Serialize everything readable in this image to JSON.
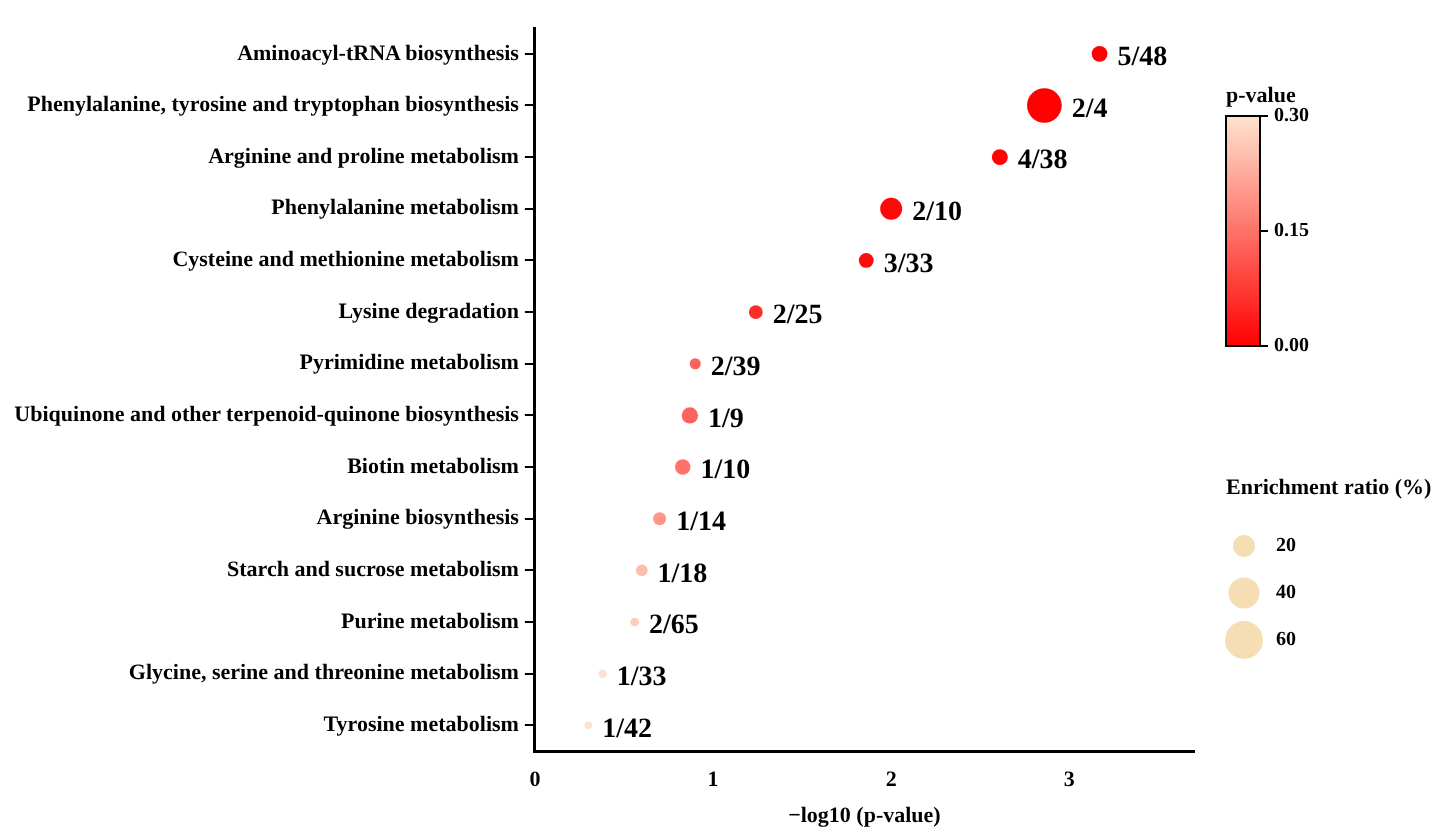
{
  "chart_data": {
    "type": "bubble",
    "xlabel": "−log10 (p-value)",
    "clabel": "p-value",
    "legend_title": "Enrichment ratio (%)",
    "categories": [
      "Aminoacyl-tRNA biosynthesis",
      "Phenylalanine, tyrosine and tryptophan biosynthesis",
      "Arginine and proline metabolism",
      "Phenylalanine metabolism",
      "Cysteine and methionine metabolism",
      "Lysine degradation",
      "Pyrimidine metabolism",
      "Ubiquinone and other terpenoid-quinone biosynthesis",
      "Biotin metabolism",
      "Arginine biosynthesis",
      "Starch and sucrose metabolism",
      "Purine metabolism",
      "Glycine, serine and threonine metabolism",
      "Tyrosine metabolism"
    ],
    "values": [
      3.17,
      2.86,
      2.61,
      2.0,
      1.86,
      1.24,
      0.9,
      0.87,
      0.83,
      0.7,
      0.6,
      0.56,
      0.38,
      0.3
    ],
    "sizes": [
      10.4,
      50,
      10.5,
      20,
      9.1,
      8,
      5.1,
      11.1,
      10,
      7.1,
      5.6,
      3.1,
      3.0,
      2.4
    ],
    "cvalues": [
      0.001,
      0.001,
      0.002,
      0.01,
      0.014,
      0.058,
      0.13,
      0.13,
      0.15,
      0.2,
      0.25,
      0.27,
      0.3,
      0.3
    ],
    "orientation": "horizontal",
    "annotations": [
      {
        "text": "5/48",
        "x": 3.17,
        "y": "Aminoacyl-tRNA biosynthesis"
      },
      {
        "text": "2/4",
        "x": 2.86,
        "y": "Phenylalanine, tyrosine and tryptophan biosynthesis"
      },
      {
        "text": "4/38",
        "x": 2.61,
        "y": "Arginine and proline metabolism"
      },
      {
        "text": "2/10",
        "x": 2.0,
        "y": "Phenylalanine metabolism"
      },
      {
        "text": "3/33",
        "x": 1.86,
        "y": "Cysteine and methionine metabolism"
      },
      {
        "text": "2/25",
        "x": 1.24,
        "y": "Lysine degradation"
      },
      {
        "text": "2/39",
        "x": 0.9,
        "y": "Pyrimidine metabolism"
      },
      {
        "text": "1/9",
        "x": 0.87,
        "y": "Ubiquinone and other terpenoid-quinone biosynthesis"
      },
      {
        "text": "1/10",
        "x": 0.83,
        "y": "Biotin metabolism"
      },
      {
        "text": "1/14",
        "x": 0.7,
        "y": "Arginine biosynthesis"
      },
      {
        "text": "1/18",
        "x": 0.6,
        "y": "Starch and sucrose metabolism"
      },
      {
        "text": "2/65",
        "x": 0.56,
        "y": "Purine metabolism"
      },
      {
        "text": "1/33",
        "x": 0.38,
        "y": "Glycine, serine and threonine metabolism"
      },
      {
        "text": "1/42",
        "x": 0.3,
        "y": "Tyrosine metabolism"
      }
    ],
    "size_legend": [
      20,
      40,
      60
    ],
    "xlim": [
      0,
      3.7
    ],
    "xticks": [
      0,
      1,
      2,
      3
    ],
    "clim": [
      0,
      0.3
    ],
    "cticks": [
      {
        "value": 0,
        "label": "0.00"
      },
      {
        "value": 0.15,
        "label": "0.15"
      },
      {
        "value": 0.3,
        "label": "0.30"
      }
    ],
    "grid": false,
    "legend": false
  }
}
